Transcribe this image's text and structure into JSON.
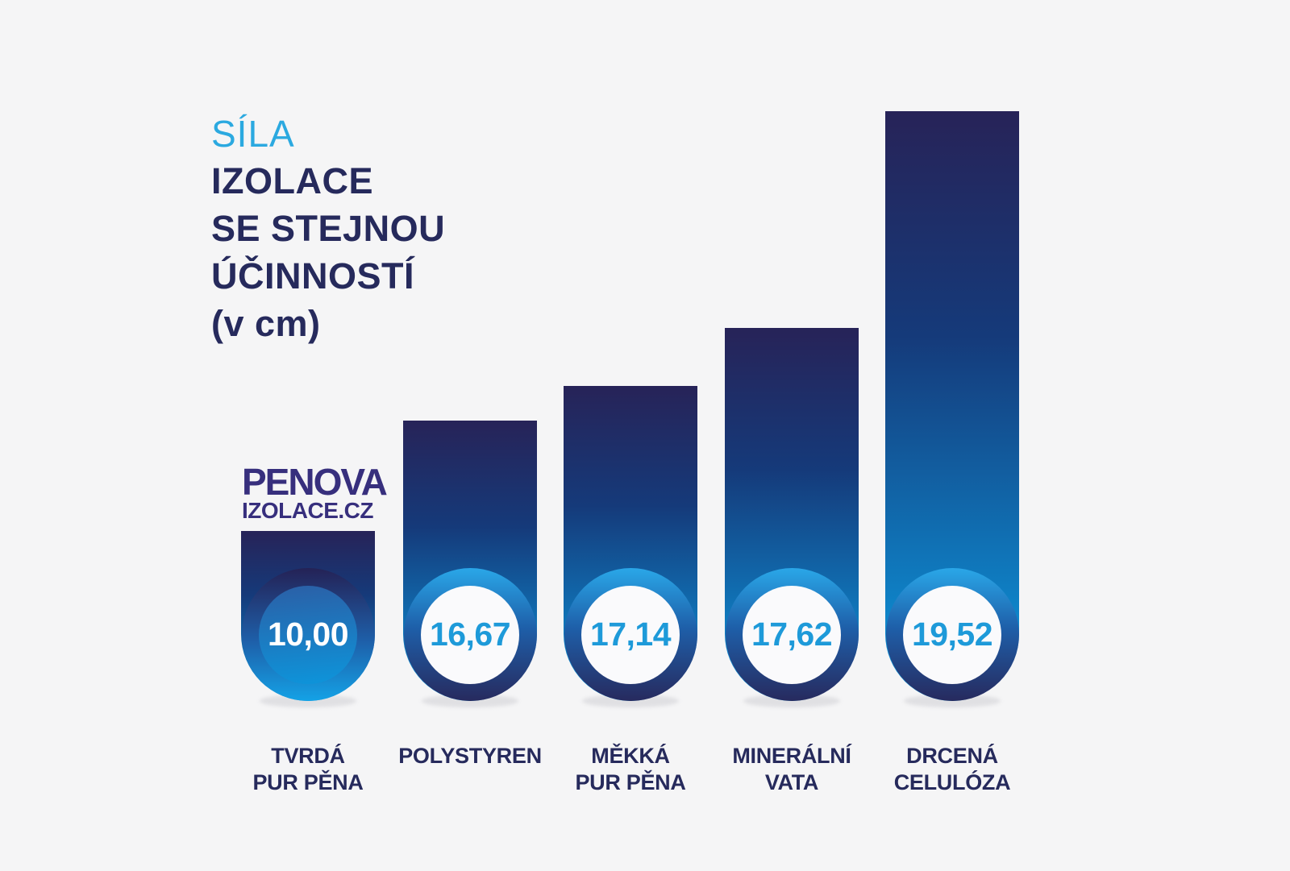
{
  "page": {
    "background": "#f5f5f6"
  },
  "title": {
    "accent_line": "SÍLA",
    "lines": [
      "IZOLACE",
      "SE STEJNOU",
      "ÚČINNOSTÍ",
      "(v cm)"
    ],
    "accent_color": "#2ba9e0",
    "navy_color": "#262a5c"
  },
  "logo": {
    "line1": "PENOVA",
    "line2": "IZOLACE.CZ",
    "color": "#372f7d"
  },
  "chart_data": {
    "type": "bar",
    "title": "SÍLA IZOLACE SE STEJNOU ÚČINNOSTÍ (v cm)",
    "unit": "cm",
    "orientation": "vertical",
    "categories": [
      "TVRDÁ PUR PĚNA",
      "POLYSTYREN",
      "MĚKKÁ PUR PĚNA",
      "MINERÁLNÍ VATA",
      "DRCENÁ CELULÓZA"
    ],
    "values": [
      10.0,
      16.67,
      17.14,
      17.62,
      19.52
    ],
    "value_labels": [
      "10,00",
      "16,67",
      "17,14",
      "17,62",
      "19,52"
    ],
    "legend": "none",
    "grid": "off",
    "colors": {
      "bar_gradient_top": "#272358",
      "bar_gradient_bottom": "#0c9ae0",
      "ring_gradient_top": "#2aa7e8",
      "ring_gradient_bottom": "#272a5e",
      "bubble_fill": "#fafafc",
      "highlight_bubble_gradient_top": "#2b5fa6",
      "highlight_bubble_gradient_bottom": "#0d95db",
      "value_text": "#1e9ad9",
      "highlight_value_text": "#ffffff",
      "label_text": "#262a5c"
    }
  },
  "bars": [
    {
      "label_line1": "TVRDÁ",
      "label_line2": "PUR PĚNA",
      "value": 10.0,
      "value_label": "10,00",
      "highlighted": true
    },
    {
      "label_line1": "POLYSTYREN",
      "label_line2": "",
      "value": 16.67,
      "value_label": "16,67",
      "highlighted": false
    },
    {
      "label_line1": "MĚKKÁ",
      "label_line2": "PUR PĚNA",
      "value": 17.14,
      "value_label": "17,14",
      "highlighted": false
    },
    {
      "label_line1": "MINERÁLNÍ",
      "label_line2": "VATA",
      "value": 17.62,
      "value_label": "17,62",
      "highlighted": false
    },
    {
      "label_line1": "DRCENÁ",
      "label_line2": "CELULÓZA",
      "value": 19.52,
      "value_label": "19,52",
      "highlighted": false
    }
  ]
}
